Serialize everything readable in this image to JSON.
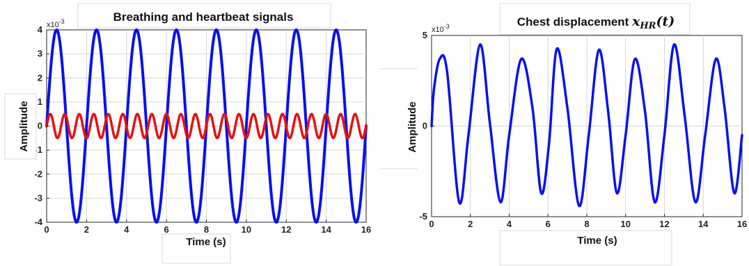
{
  "chart_data": [
    {
      "type": "line",
      "title": "Breathing and heartbeat signals",
      "xlabel": "Time (s)",
      "ylabel": "Amplitude",
      "y_exponent": "x10^-3",
      "xlim": [
        0,
        16
      ],
      "ylim": [
        -4,
        4
      ],
      "x_ticks": [
        "0",
        "2",
        "4",
        "6",
        "8",
        "10",
        "12",
        "14",
        "16"
      ],
      "y_ticks": [
        "4",
        "3",
        "2",
        "1",
        "0",
        "-1",
        "-2",
        "-3",
        "-4"
      ],
      "grid": true,
      "series": [
        {
          "color": "#0a10ee",
          "form": "sine",
          "amplitude": 4,
          "period_s": 2.0,
          "peaks_x": [
            0.5,
            2.5,
            4.5,
            6.5,
            8.5,
            10.5,
            12.5,
            14.5
          ]
        },
        {
          "color": "#e81010",
          "form": "sine",
          "amplitude": 0.5,
          "period_s": 0.727,
          "peaks_x": [
            0.18,
            0.91,
            1.64,
            2.36,
            3.09
          ]
        }
      ]
    },
    {
      "type": "line",
      "title": "Chest displacement ",
      "title_math": "x_HR(t)",
      "xlabel": "Time (s)",
      "ylabel": "Amplitude",
      "y_exponent": "x10^-3",
      "xlim": [
        0,
        16
      ],
      "ylim": [
        -5,
        5
      ],
      "x_ticks": [
        "0",
        "2",
        "4",
        "6",
        "8",
        "10",
        "12",
        "14",
        "16"
      ],
      "y_ticks": [
        "5",
        "0",
        "-5"
      ],
      "grid": true,
      "series": [
        {
          "color": "#0a10ee",
          "x": [
            0,
            0.12,
            0.42,
            0.8,
            1.42,
            1.9,
            2.5,
            3.0,
            3.55,
            4.0,
            4.62,
            5.2,
            5.65,
            6.05,
            6.45,
            7.0,
            7.6,
            8.1,
            8.62,
            9.1,
            9.55,
            10.0,
            10.48,
            11.0,
            11.5,
            12.0,
            12.5,
            13.05,
            13.6,
            14.1,
            14.65,
            15.1,
            15.6,
            16.0
          ],
          "y": [
            0,
            2.0,
            3.7,
            3.0,
            -4.2,
            -0.5,
            4.5,
            0.2,
            -4.2,
            -0.5,
            3.7,
            1.0,
            -3.7,
            -1.0,
            4.25,
            1.0,
            -4.4,
            -0.5,
            4.2,
            0.8,
            -3.7,
            -0.5,
            3.7,
            0.8,
            -4.2,
            -0.5,
            4.5,
            0.5,
            -4.2,
            -0.5,
            3.7,
            1.0,
            -3.7,
            -0.5
          ]
        }
      ]
    }
  ]
}
